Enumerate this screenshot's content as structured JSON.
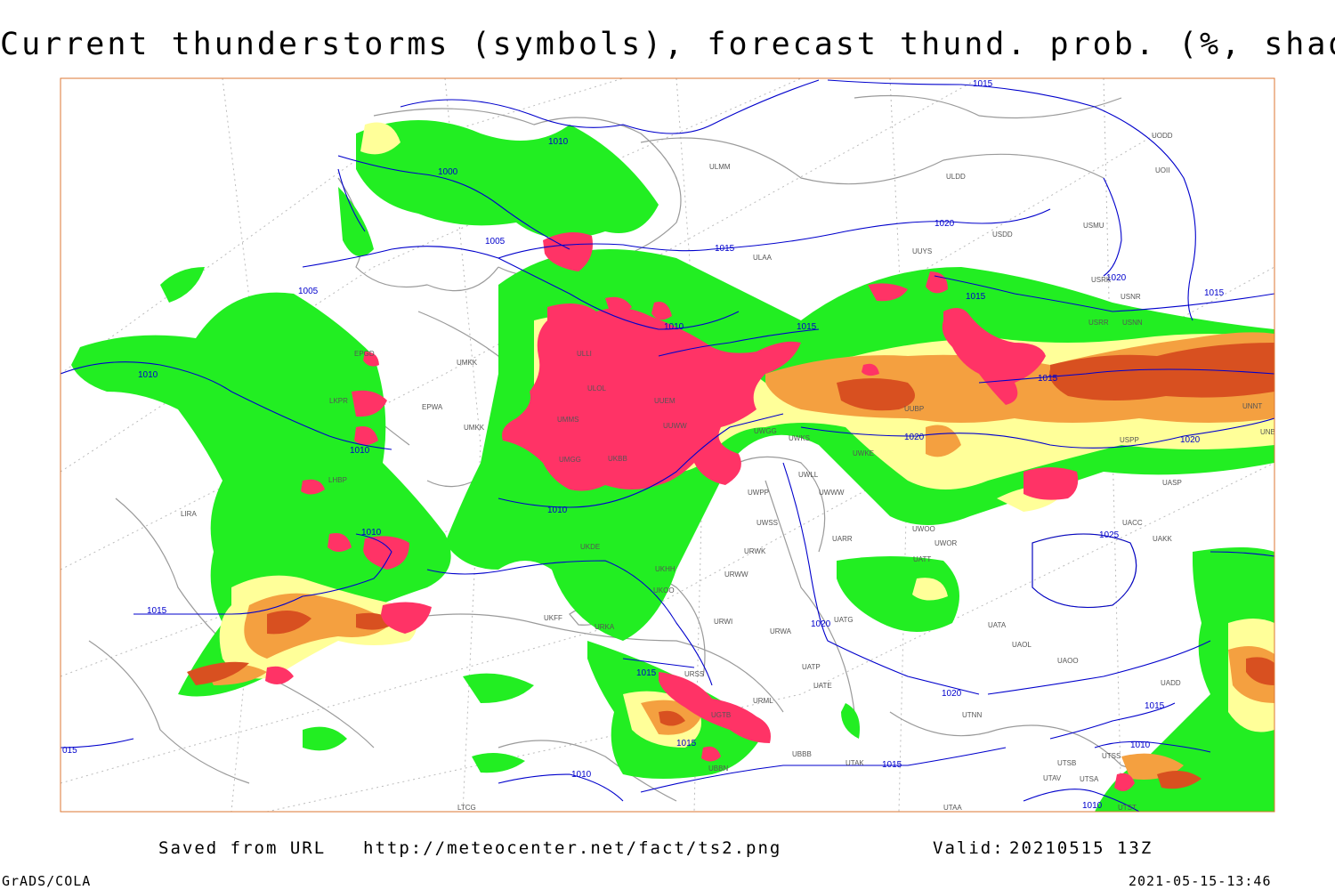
{
  "title": "Current thunderstorms (symbols), forecast thund. prob. (%, shaded)",
  "source_label": "Saved from URL",
  "source_url": "http://meteocenter.net/fact/ts2.png",
  "valid_label": "Valid:",
  "valid_time": "20210515 13Z",
  "software": "GrADS/COLA",
  "timestamp": "2021-05-15-13:46",
  "colors": {
    "isobar": "#0000cc",
    "coast": "#999999",
    "prob_low": "#ffff99",
    "prob_green": "#22ee22",
    "prob_mid": "#f4a040",
    "prob_high": "#d85020",
    "storm_symbol": "#ff3366"
  },
  "isobar_labels": [
    "1015",
    "1010",
    "1000",
    "1005",
    "1015",
    "1020",
    "1020",
    "1015",
    "1015",
    "1015",
    "1010",
    "1010",
    "1010",
    "1015",
    "1005",
    "1010",
    "1010",
    "1020",
    "1015",
    "1010",
    "1015",
    "1015",
    "1020",
    "1025",
    "1020",
    "1020",
    "1015",
    "1015",
    "1010",
    "1010",
    "015"
  ],
  "stations": [
    "UODD",
    "UOII",
    "ULDD",
    "USMU",
    "USDD",
    "UUYS",
    "USRK",
    "USNR",
    "USNN",
    "USRR",
    "ULAA",
    "ULMM",
    "UMKK",
    "EPWA",
    "ULOL",
    "UUEM",
    "UMMS",
    "UUWW",
    "UMGG",
    "UUBP",
    "UWGG",
    "UWKS",
    "UWKE",
    "UWLL",
    "UWWW",
    "UWPP",
    "UWSS",
    "UARR",
    "UWOO",
    "UWOR",
    "UATT",
    "UAKK",
    "UACC",
    "UASP",
    "UNBB",
    "UNNT",
    "USPP",
    "UATG",
    "UATA",
    "UAOL",
    "UAOO",
    "UADD",
    "UATE",
    "UATP",
    "URWI",
    "URWA",
    "URWW",
    "URWK",
    "URML",
    "UBBB",
    "UTAK",
    "UTNN",
    "UTAA",
    "UTSB",
    "UTSS",
    "UTSA",
    "UTAV",
    "UTST",
    "UKBB",
    "UKDE",
    "UKHH",
    "UKOO",
    "URKA",
    "UKFF",
    "LHBP",
    "LIRA",
    "LKPR",
    "EPGD",
    "ULLI",
    "UMKK",
    "URSS",
    "UGTB",
    "UBBN",
    "LTCG"
  ]
}
